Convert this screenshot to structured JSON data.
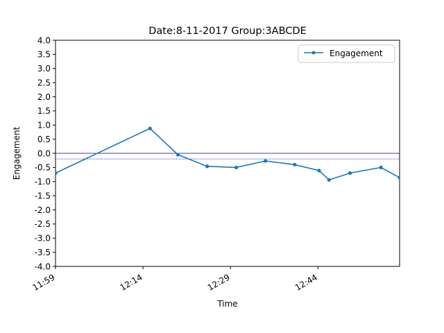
{
  "chart_data": {
    "type": "line",
    "title": "Date:8-11-2017 Group:3ABCDE",
    "xlabel": "Time",
    "ylabel": "Engagement",
    "xlim_minutes": [
      0,
      59
    ],
    "ylim": [
      -4.0,
      4.0
    ],
    "yticks": [
      "-4.0",
      "-3.5",
      "-3.0",
      "-2.5",
      "-2.0",
      "-1.5",
      "-1.0",
      "-0.5",
      "0.0",
      "0.5",
      "1.0",
      "1.5",
      "2.0",
      "2.5",
      "3.0",
      "3.5",
      "4.0"
    ],
    "yticks_values": [
      -4.0,
      -3.5,
      -3.0,
      -2.5,
      -2.0,
      -1.5,
      -1.0,
      -0.5,
      0.0,
      0.5,
      1.0,
      1.5,
      2.0,
      2.5,
      3.0,
      3.5,
      4.0
    ],
    "xticks": [
      {
        "label": "11:59",
        "minute": 0
      },
      {
        "label": "12:14",
        "minute": 15
      },
      {
        "label": "12:29",
        "minute": 30
      },
      {
        "label": "12:44",
        "minute": 45
      }
    ],
    "reference_lines": [
      {
        "y": 0.0,
        "color": "#000080",
        "style": "solid"
      },
      {
        "y": -0.2,
        "color": "#0000ff",
        "style": "dotted"
      }
    ],
    "legend": {
      "position": "top-right"
    },
    "series": [
      {
        "name": "Engagement",
        "color": "#1f77b4",
        "points": [
          {
            "minute": 0.0,
            "value": -0.7
          },
          {
            "minute": 16.2,
            "value": 0.88
          },
          {
            "minute": 21.0,
            "value": -0.05
          },
          {
            "minute": 26.0,
            "value": -0.46
          },
          {
            "minute": 31.0,
            "value": -0.5
          },
          {
            "minute": 36.0,
            "value": -0.27
          },
          {
            "minute": 41.0,
            "value": -0.4
          },
          {
            "minute": 45.2,
            "value": -0.61
          },
          {
            "minute": 46.9,
            "value": -0.94
          },
          {
            "minute": 50.5,
            "value": -0.7
          },
          {
            "minute": 55.8,
            "value": -0.5
          },
          {
            "minute": 59.0,
            "value": -0.86
          }
        ]
      }
    ]
  }
}
